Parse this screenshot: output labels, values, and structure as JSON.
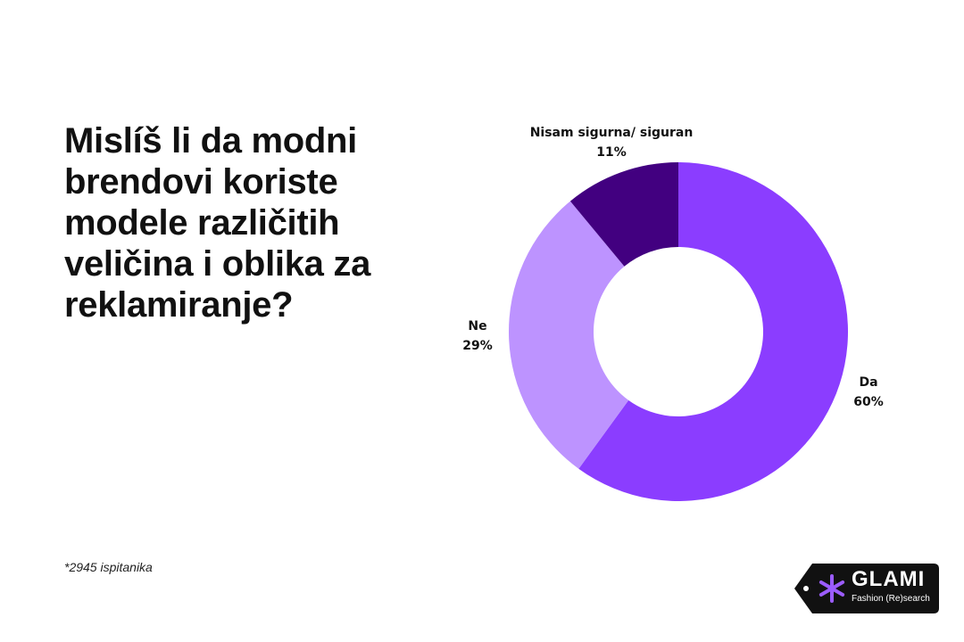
{
  "question": "Mislíš li da modni brendovi koriste modele različitih veličina i oblika za reklamiranje?",
  "footnote": "*2945 ispitanika",
  "brand": {
    "name": "GLAMI",
    "tagline": "Fashion (Re)search"
  },
  "colors": {
    "da": "#8b3dff",
    "ne": "#bd93ff",
    "nisam": "#420080",
    "logo_bg": "#111111",
    "logo_star": "#9b5cff"
  },
  "chart_data": {
    "type": "pie",
    "variant": "donut",
    "title": "",
    "slices": [
      {
        "label": "Da",
        "value": 60,
        "pct_label": "60%"
      },
      {
        "label": "Ne",
        "value": 29,
        "pct_label": "29%"
      },
      {
        "label": "Nisam sigurna/ siguran",
        "value": 11,
        "pct_label": "11%"
      }
    ]
  }
}
